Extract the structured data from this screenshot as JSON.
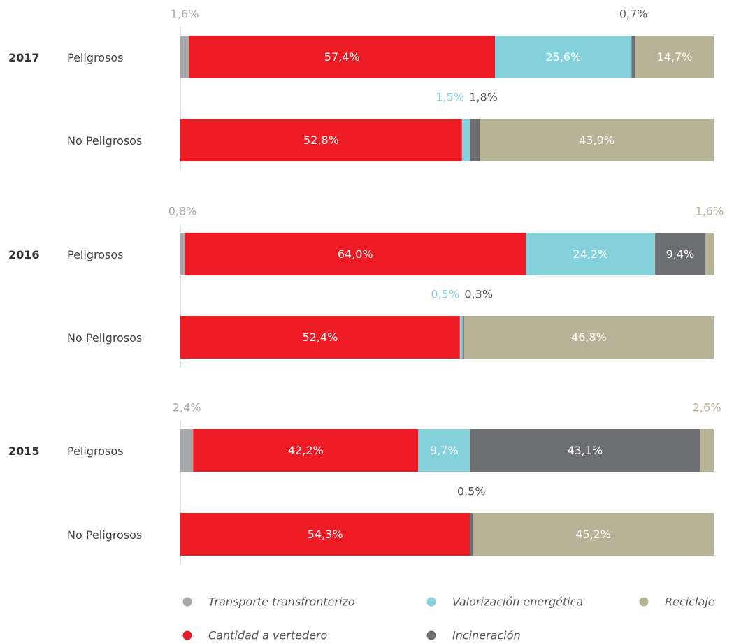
{
  "chart_data": {
    "type": "stacked-bar-horizontal",
    "groups": [
      "2017",
      "2016",
      "2015"
    ],
    "categories": [
      "Peligrosos",
      "No Peligrosos",
      "Peligrosos",
      "No Peligrosos",
      "Peligrosos",
      "No Peligrosos"
    ],
    "xlim": [
      0,
      100
    ],
    "legend": "bottom",
    "series": [
      {
        "name": "Transporte transfronterizo",
        "color": "#a7a9ac",
        "label_color": "#a7a9ac",
        "values": [
          1.6,
          null,
          0.8,
          null,
          2.4,
          null
        ],
        "value_labels": [
          "1,6%",
          null,
          "0,8%",
          null,
          "2,4%",
          null
        ]
      },
      {
        "name": "Cantidad a vertedero",
        "color": "#ed1c24",
        "label_color": "#ed1c24",
        "values": [
          57.4,
          52.8,
          64.0,
          52.4,
          42.2,
          54.3
        ],
        "value_labels": [
          "57,4%",
          "52,8%",
          "64,0%",
          "52,4%",
          "42,2%",
          "54,3%"
        ]
      },
      {
        "name": "Valorización energética",
        "color": "#85d1db",
        "label_color": "#85d1db",
        "values": [
          25.6,
          1.5,
          24.2,
          0.5,
          9.7,
          null
        ],
        "value_labels": [
          "25,6%",
          "1,5%",
          "24,2%",
          "0,5%",
          "9,7%",
          null
        ]
      },
      {
        "name": "Incineración",
        "color": "#6d6e71",
        "label_color": "#555759",
        "values": [
          0.7,
          1.8,
          9.4,
          0.3,
          43.1,
          0.5
        ],
        "value_labels": [
          "0,7%",
          "1,8%",
          "9,4%",
          "0,3%",
          "43,1%",
          "0,5%"
        ]
      },
      {
        "name": "Reciclaje",
        "color": "#b8b396",
        "label_color": "#b8b396",
        "values": [
          14.7,
          43.9,
          1.6,
          46.8,
          2.6,
          45.2
        ],
        "value_labels": [
          "14,7%",
          "43,9%",
          "1,6%",
          "46,8%",
          "2,6%",
          "45,2%"
        ]
      }
    ]
  }
}
